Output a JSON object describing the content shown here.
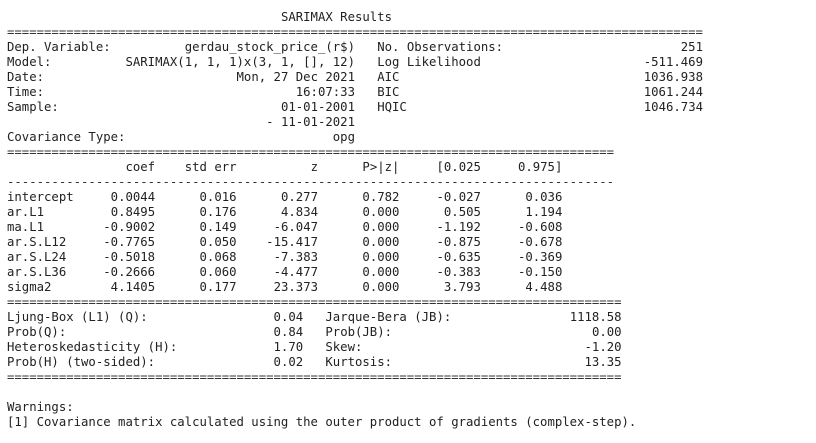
{
  "title": "SARIMAX Results",
  "rules": {
    "eq_wide": "==============================================================================================",
    "eq_mid": "==================================================================================",
    "eq_lower": "===================================================================================",
    "dash_mid": "----------------------------------------------------------------------------------"
  },
  "summary_rows": [
    [
      "Dep. Variable:",
      "gerdau_stock_price_(r$)",
      "No. Observations:",
      "251"
    ],
    [
      "Model:",
      "SARIMAX(1, 1, 1)x(3, 1, [], 12)",
      "Log Likelihood",
      "-511.469"
    ],
    [
      "Date:",
      "Mon, 27 Dec 2021",
      "AIC",
      "1036.938"
    ],
    [
      "Time:",
      "16:07:33",
      "BIC",
      "1061.244"
    ],
    [
      "Sample:",
      "01-01-2001",
      "HQIC",
      "1046.734"
    ],
    [
      "",
      "- 11-01-2021",
      "",
      ""
    ],
    [
      "Covariance Type:",
      "opg",
      "",
      ""
    ]
  ],
  "coef_headers": [
    "",
    "coef",
    "std err",
    "z",
    "P>|z|",
    "[0.025",
    "0.975]"
  ],
  "coef_rows": [
    [
      "intercept",
      "0.0044",
      "0.016",
      "0.277",
      "0.782",
      "-0.027",
      "0.036"
    ],
    [
      "ar.L1",
      "0.8495",
      "0.176",
      "4.834",
      "0.000",
      "0.505",
      "1.194"
    ],
    [
      "ma.L1",
      "-0.9002",
      "0.149",
      "-6.047",
      "0.000",
      "-1.192",
      "-0.608"
    ],
    [
      "ar.S.L12",
      "-0.7765",
      "0.050",
      "-15.417",
      "0.000",
      "-0.875",
      "-0.678"
    ],
    [
      "ar.S.L24",
      "-0.5018",
      "0.068",
      "-7.383",
      "0.000",
      "-0.635",
      "-0.369"
    ],
    [
      "ar.S.L36",
      "-0.2666",
      "0.060",
      "-4.477",
      "0.000",
      "-0.383",
      "-0.150"
    ],
    [
      "sigma2",
      "4.1405",
      "0.177",
      "23.373",
      "0.000",
      "3.793",
      "4.488"
    ]
  ],
  "diag_rows": [
    [
      "Ljung-Box (L1) (Q):",
      "0.04",
      "Jarque-Bera (JB):",
      "1118.58"
    ],
    [
      "Prob(Q):",
      "0.84",
      "Prob(JB):",
      "0.00"
    ],
    [
      "Heteroskedasticity (H):",
      "1.70",
      "Skew:",
      "-1.20"
    ],
    [
      "Prob(H) (two-sided):",
      "0.02",
      "Kurtosis:",
      "13.35"
    ]
  ],
  "warnings_title": "Warnings:",
  "warnings": [
    "[1] Covariance matrix calculated using the outer product of gradients (complex-step)."
  ]
}
